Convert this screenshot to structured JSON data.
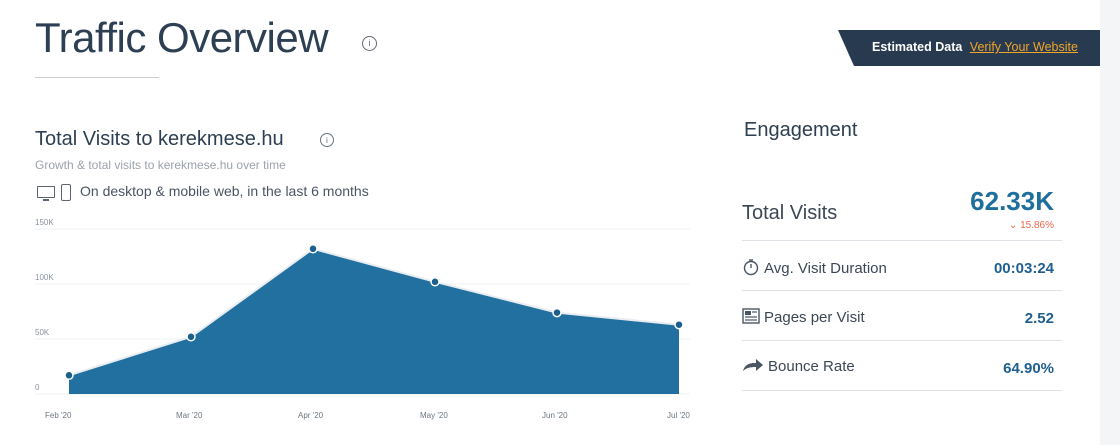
{
  "header": {
    "title": "Traffic Overview",
    "info_icon": "info-icon",
    "estimated_label": "Estimated Data",
    "verify_link": "Verify Your Website"
  },
  "visits": {
    "title": "Total Visits to kerekmese.hu",
    "subtitle": "Growth & total visits to kerekmese.hu over time",
    "device_note": "On desktop & mobile web, in the last 6 months"
  },
  "chart_data": {
    "type": "area",
    "categories": [
      "Feb '20",
      "Mar '20",
      "Apr '20",
      "May '20",
      "Jun '20",
      "Jul '20"
    ],
    "values": [
      17000,
      52000,
      132000,
      102000,
      74000,
      63000
    ],
    "ylim": [
      0,
      150000
    ],
    "yticks": [
      "0",
      "50K",
      "100K",
      "150K"
    ],
    "grid": true,
    "fill_color": "#22709f",
    "line_color": "#e9edf2"
  },
  "engagement": {
    "title": "Engagement",
    "total_visits_label": "Total Visits",
    "total_visits_value": "62.33K",
    "total_visits_change": "15.86%",
    "metrics": [
      {
        "label": "Avg. Visit Duration",
        "value": "00:03:24",
        "icon": "stopwatch-icon"
      },
      {
        "label": "Pages per Visit",
        "value": "2.52",
        "icon": "pages-icon"
      },
      {
        "label": "Bounce Rate",
        "value": "64.90%",
        "icon": "bounce-arrow-icon"
      }
    ]
  }
}
